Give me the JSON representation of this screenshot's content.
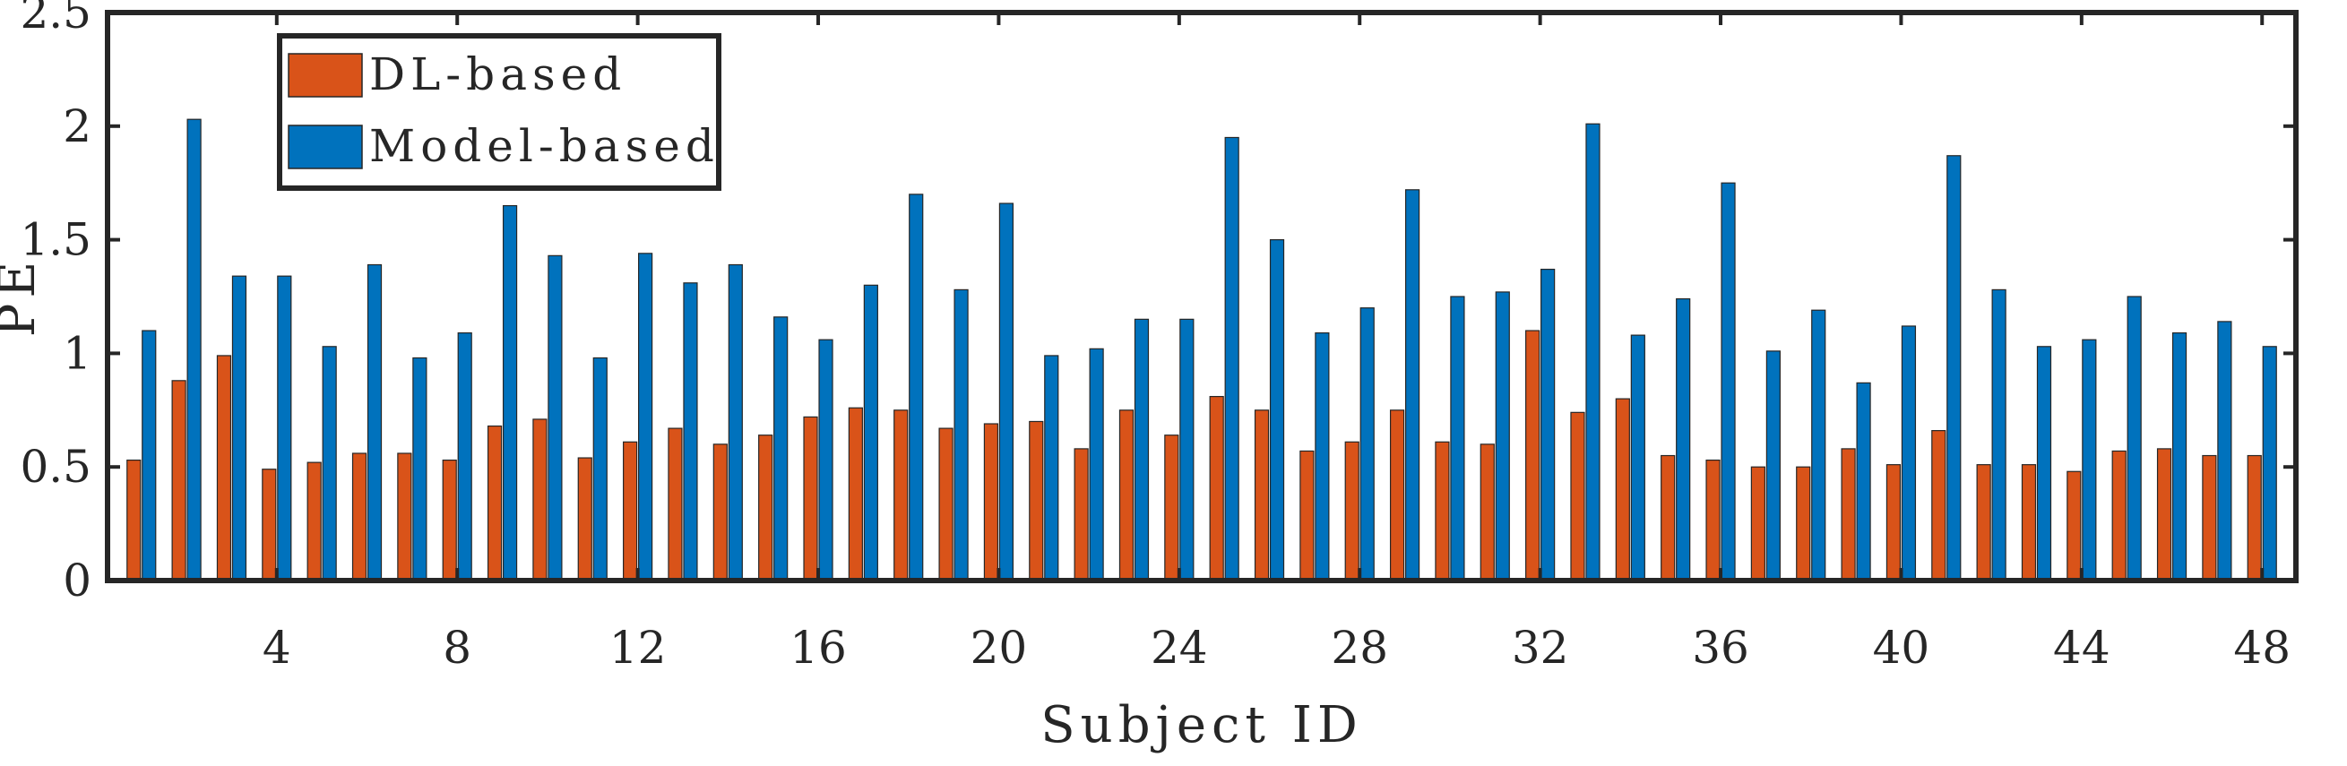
{
  "chart_data": {
    "type": "bar",
    "xlabel": "Subject ID",
    "ylabel": "PE",
    "ylim": [
      0,
      2.5
    ],
    "yticks": [
      "0",
      "0.5",
      "1",
      "1.5",
      "2",
      "2.5"
    ],
    "xticks": [
      "4",
      "8",
      "12",
      "16",
      "20",
      "24",
      "28",
      "32",
      "36",
      "40",
      "44",
      "48"
    ],
    "categories": [
      1,
      2,
      3,
      4,
      5,
      6,
      7,
      8,
      9,
      10,
      11,
      12,
      13,
      14,
      15,
      16,
      17,
      18,
      19,
      20,
      21,
      22,
      23,
      24,
      25,
      26,
      27,
      28,
      29,
      30,
      31,
      32,
      33,
      34,
      35,
      36,
      37,
      38,
      39,
      40,
      41,
      42,
      43,
      44,
      45,
      46,
      47,
      48
    ],
    "series": [
      {
        "name": "DL-based",
        "color": "#d95319",
        "values": [
          0.53,
          0.88,
          0.99,
          0.49,
          0.52,
          0.56,
          0.56,
          0.53,
          0.68,
          0.71,
          0.54,
          0.61,
          0.67,
          0.6,
          0.64,
          0.72,
          0.76,
          0.75,
          0.67,
          0.69,
          0.7,
          0.58,
          0.75,
          0.64,
          0.81,
          0.75,
          0.57,
          0.61,
          0.75,
          0.61,
          0.6,
          1.1,
          0.74,
          0.8,
          0.55,
          0.53,
          0.5,
          0.5,
          0.58,
          0.51,
          0.66,
          0.51,
          0.51,
          0.48,
          0.57,
          0.58,
          0.55,
          0.55
        ]
      },
      {
        "name": "Model-based",
        "color": "#0072bd",
        "values": [
          1.1,
          2.03,
          1.34,
          1.34,
          1.03,
          1.39,
          0.98,
          1.09,
          1.65,
          1.43,
          0.98,
          1.44,
          1.31,
          1.39,
          1.16,
          1.06,
          1.3,
          1.7,
          1.28,
          1.66,
          0.99,
          1.02,
          1.15,
          1.15,
          1.95,
          1.5,
          1.09,
          1.2,
          1.72,
          1.25,
          1.27,
          1.37,
          2.01,
          1.08,
          1.24,
          1.75,
          1.01,
          1.19,
          0.87,
          1.12,
          1.87,
          1.28,
          1.03,
          1.06,
          1.25,
          1.09,
          1.14,
          1.03
        ]
      }
    ],
    "legend_position": "top-left",
    "grid": false
  }
}
